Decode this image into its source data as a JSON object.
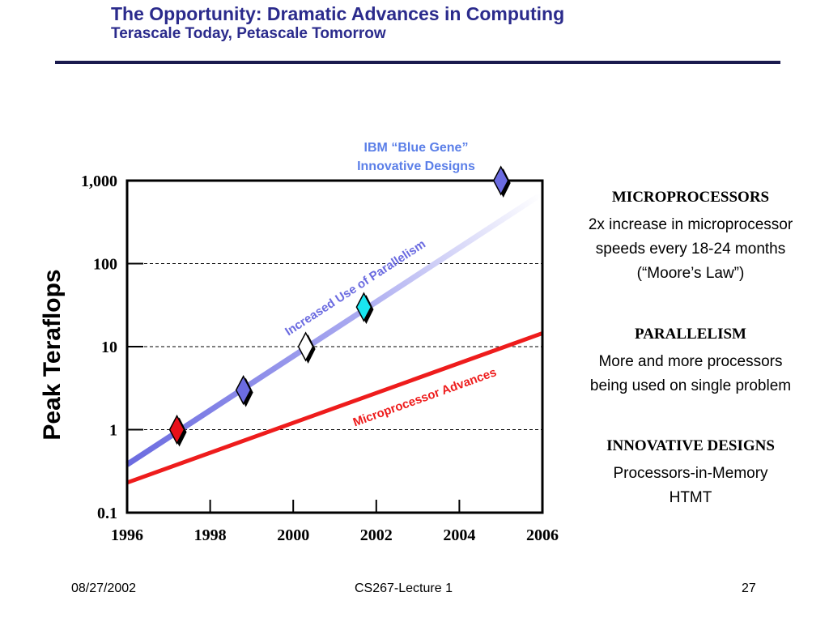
{
  "slide": {
    "title": "The Opportunity: Dramatic Advances in Computing",
    "subtitle": "Terascale Today, Petascale Tomorrow"
  },
  "chart_data": {
    "type": "line",
    "ylabel": "Peak Teraflops",
    "xlim": [
      1996,
      2006
    ],
    "ylim": [
      0.1,
      1000
    ],
    "y_scale": "log",
    "x_ticks": [
      1996,
      1998,
      2000,
      2002,
      2004,
      2006
    ],
    "x_tick_labels": [
      "1996",
      "1998",
      "2000",
      "2002",
      "2004",
      "2006"
    ],
    "y_ticks": [
      0.1,
      1,
      10,
      100,
      1000
    ],
    "y_tick_labels": [
      "0.1",
      "1",
      "10",
      "100",
      "1,000"
    ],
    "gridlines": "dashed horizontal at 1, 10, 100",
    "series": [
      {
        "name": "Increased Use of Parallelism",
        "color": "#6b6be0",
        "style": "gradient fading toward light",
        "x": [
          1996,
          2006
        ],
        "y": [
          0.38,
          700
        ]
      },
      {
        "name": "Microprocessor Advances",
        "color": "#ee1c1c",
        "x": [
          1996,
          2006
        ],
        "y": [
          0.23,
          14.5
        ]
      }
    ],
    "markers": [
      {
        "x": 1997.2,
        "y": 1,
        "color": "#e8101a"
      },
      {
        "x": 1998.8,
        "y": 3,
        "color": "#6b6be0"
      },
      {
        "x": 2000.3,
        "y": 10,
        "color": "#ffffff"
      },
      {
        "x": 2001.7,
        "y": 30,
        "color": "#19e6f0"
      },
      {
        "x": 2005.0,
        "y": 1000,
        "color": "#6b6be0"
      }
    ],
    "annotations": [
      {
        "lines": [
          "IBM “Blue Gene”",
          "Innovative Designs"
        ],
        "color": "#5b7fe8"
      }
    ]
  },
  "sidebar": {
    "sections": [
      {
        "heading": "MICROPROCESSORS",
        "lines": [
          "2x increase in microprocessor",
          "speeds every 18-24 months",
          "(“Moore’s Law”)"
        ]
      },
      {
        "heading": "PARALLELISM",
        "lines": [
          "More and more processors",
          "being used on single problem"
        ]
      },
      {
        "heading": "INNOVATIVE DESIGNS",
        "lines": [
          "Processors-in-Memory",
          "HTMT"
        ]
      }
    ]
  },
  "footer": {
    "date": "08/27/2002",
    "course": "CS267-Lecture 1",
    "page": "27"
  }
}
